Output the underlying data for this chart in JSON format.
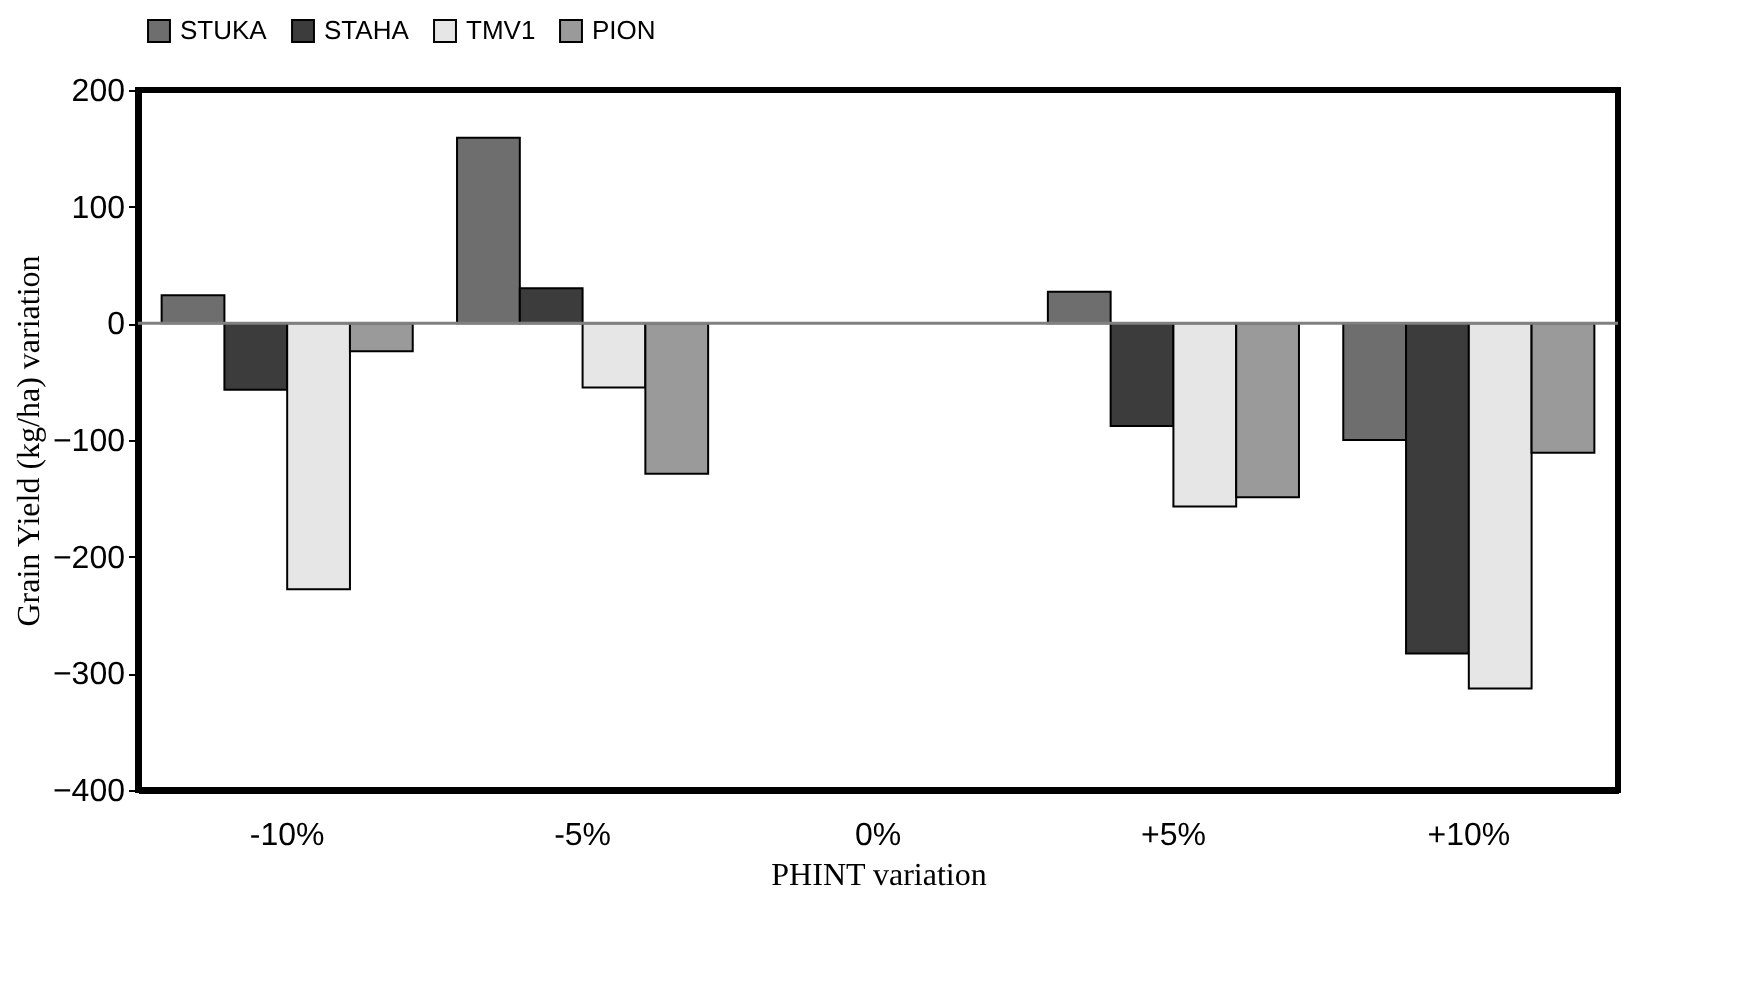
{
  "chart_data": {
    "type": "bar",
    "xlabel": "PHINT variation",
    "ylabel": "Grain Yield (kg/ha) variation",
    "categories": [
      "-10%",
      "-5%",
      "0%",
      "+5%",
      "+10%"
    ],
    "series": [
      {
        "name": "STUKA",
        "color": "#6e6e6e",
        "values": [
          24,
          159,
          null,
          27,
          -100
        ]
      },
      {
        "name": "STAHA",
        "color": "#3c3c3c",
        "values": [
          -57,
          30,
          null,
          -88,
          -283
        ]
      },
      {
        "name": "TMV1",
        "color": "#e6e6e6",
        "values": [
          -228,
          -55,
          null,
          -157,
          -313
        ]
      },
      {
        "name": "PION",
        "color": "#9a9a9a",
        "values": [
          -24,
          -129,
          null,
          -149,
          -111
        ]
      }
    ],
    "ylim": [
      -400,
      200
    ],
    "yticks": [
      -400,
      -300,
      -200,
      -100,
      0,
      100,
      200
    ],
    "ref_lines": [
      {
        "axis": "y",
        "value": 0,
        "color": "#808080"
      }
    ],
    "grid": false,
    "legend": "top"
  }
}
